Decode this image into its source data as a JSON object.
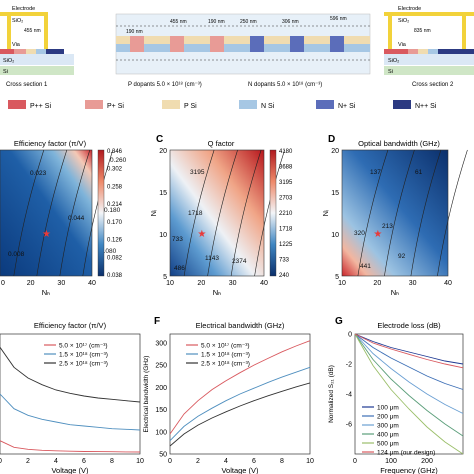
{
  "top": {
    "left_section": {
      "electrode": "Electrode",
      "sio2": "SiO₂",
      "dim": "455 nm",
      "via": "Via",
      "sio2_lower": "SiO₂",
      "si": "Si",
      "caption": "Cross section 1"
    },
    "center_section": {
      "dims": [
        "455 nm",
        "190 nm",
        "250 nm",
        "306 nm",
        "596 nm"
      ],
      "left_dim": "190 nm",
      "dopants_p": "P dopants  5.0 × 10¹⁸ (cm⁻³)",
      "dopants_n": "N dopants  5.0 × 10¹⁸ (cm⁻³)"
    },
    "right_section": {
      "electrode": "Electrode",
      "sio2": "SiO₂",
      "dim": "835 nm",
      "via": "Via",
      "sio2_lower": "SiO₂",
      "si": "Si",
      "caption": "Cross section 2"
    }
  },
  "legend": [
    {
      "label": "P++ Si",
      "color": "#d9595f"
    },
    {
      "label": "P+  Si",
      "color": "#e89b96"
    },
    {
      "label": "P   Si",
      "color": "#f0dcb0"
    },
    {
      "label": "N   Si",
      "color": "#a6c7e4"
    },
    {
      "label": "N+ Si",
      "color": "#5b6dba"
    },
    {
      "label": "N++ Si",
      "color": "#2c3a82"
    }
  ],
  "heatmaps": [
    {
      "panel": "",
      "title": "Efficiency factor (π/V)",
      "xlabel": "Nₕ",
      "ylabel": "",
      "x_ticks": [
        "20",
        "30",
        "40"
      ],
      "x_first_tick": "0",
      "y_ticks": [],
      "colorbar_ticks": [
        "0.346",
        "0.302",
        "0.258",
        "0.214",
        "0.170",
        "0.126",
        "0.082",
        "0.038"
      ],
      "contour_labels": [
        "0.023",
        "0.044",
        "0.080",
        "0.008",
        "0.180",
        "0.260"
      ],
      "star": {
        "x": 20,
        "y": 10
      }
    },
    {
      "panel": "C",
      "title": "Q factor",
      "xlabel": "Nₕ",
      "ylabel": "Nᵢ",
      "x_ticks": [
        "10",
        "20",
        "30",
        "40"
      ],
      "y_ticks": [
        "20",
        "15",
        "10",
        "5"
      ],
      "colorbar_ticks": [
        "4180",
        "3688",
        "3195",
        "2703",
        "2210",
        "1718",
        "1225",
        "733",
        "240"
      ],
      "contour_labels": [
        "3195",
        "1718",
        "733",
        "1143",
        "2374",
        "486"
      ],
      "star": {
        "x": 20,
        "y": 10
      }
    },
    {
      "panel": "D",
      "title": "Optical bandwidth (GHz)",
      "xlabel": "Nₕ",
      "ylabel": "Nᵢ",
      "x_ticks": [
        "10",
        "20",
        "30",
        "40"
      ],
      "y_ticks": [
        "20",
        "15",
        "10",
        "5"
      ],
      "colorbar_ticks": [],
      "contour_labels": [
        "137",
        "61",
        "320",
        "213",
        "92",
        "441"
      ],
      "star": {
        "x": 20,
        "y": 10
      }
    }
  ],
  "chart_data": [
    {
      "type": "line",
      "panel": "",
      "title": "Efficiency factor (π/V)",
      "xlabel": "Voltage (V)",
      "ylabel": "",
      "xlim": [
        0,
        10
      ],
      "x_ticks": [
        "0",
        "2",
        "4",
        "6",
        "8",
        "10"
      ],
      "x": [
        0,
        1,
        2,
        3,
        4,
        5,
        6,
        7,
        8,
        9,
        10
      ],
      "series": [
        {
          "name": "5.0 × 10¹⁷ (cm⁻³)",
          "color": "#d9595f",
          "values": [
            0.1,
            0.05,
            0.035,
            0.028,
            0.024,
            0.021,
            0.019,
            0.018,
            0.017,
            0.016,
            0.015
          ]
        },
        {
          "name": "1.5 × 10¹⁸ (cm⁻³)",
          "color": "#4f8fbf",
          "values": [
            0.45,
            0.34,
            0.29,
            0.26,
            0.24,
            0.22,
            0.21,
            0.2,
            0.19,
            0.185,
            0.18
          ]
        },
        {
          "name": "2.5 × 10¹⁸ (cm⁻³)",
          "color": "#333333",
          "values": [
            0.8,
            0.65,
            0.57,
            0.52,
            0.48,
            0.455,
            0.435,
            0.42,
            0.41,
            0.4,
            0.39
          ]
        }
      ],
      "ylim": [
        0,
        0.9
      ]
    },
    {
      "type": "line",
      "panel": "F",
      "title": "Electrical bandwidth (GHz)",
      "xlabel": "Voltage (V)",
      "ylabel": "Electrical bandwidth (GHz)",
      "xlim": [
        0,
        10
      ],
      "ylim": [
        50,
        320
      ],
      "x_ticks": [
        "0",
        "2",
        "4",
        "6",
        "8",
        "10"
      ],
      "y_ticks": [
        "300",
        "250",
        "200",
        "150",
        "100",
        "50"
      ],
      "x": [
        0,
        1,
        2,
        3,
        4,
        5,
        6,
        7,
        8,
        9,
        10
      ],
      "series": [
        {
          "name": "5.0 × 10¹⁷ (cm⁻³)",
          "color": "#d9595f",
          "values": [
            95,
            140,
            170,
            195,
            215,
            233,
            250,
            265,
            280,
            293,
            305
          ]
        },
        {
          "name": "1.5 × 10¹⁸ (cm⁻³)",
          "color": "#4f8fbf",
          "values": [
            80,
            112,
            135,
            153,
            170,
            185,
            198,
            211,
            223,
            234,
            245
          ]
        },
        {
          "name": "2.5 × 10¹⁸ (cm⁻³)",
          "color": "#333333",
          "values": [
            68,
            95,
            115,
            131,
            145,
            158,
            170,
            181,
            191,
            201,
            210
          ]
        }
      ]
    },
    {
      "type": "line",
      "panel": "G",
      "title": "Electrode loss (dB)",
      "xlabel": "Frequency (GHz)",
      "ylabel": "Normalized S₂₁ (dB)",
      "xlim": [
        0,
        300
      ],
      "ylim": [
        -8,
        0
      ],
      "x_ticks": [
        "0",
        "100",
        "200"
      ],
      "y_ticks": [
        "0",
        "-2",
        "-4",
        "-6"
      ],
      "x": [
        0,
        50,
        100,
        150,
        200,
        250,
        300
      ],
      "series": [
        {
          "name": "100 μm",
          "color": "#1f3a93",
          "values": [
            0,
            -0.5,
            -0.9,
            -1.2,
            -1.5,
            -1.8,
            -2.0
          ]
        },
        {
          "name": "200 μm",
          "color": "#3d6fb6",
          "values": [
            0,
            -0.9,
            -1.6,
            -2.2,
            -2.8,
            -3.3,
            -3.7
          ]
        },
        {
          "name": "300 μm",
          "color": "#6a9fd3",
          "values": [
            0,
            -1.3,
            -2.3,
            -3.2,
            -4.0,
            -4.7,
            -5.3
          ]
        },
        {
          "name": "400 μm",
          "color": "#5b9e7a",
          "values": [
            0,
            -1.7,
            -3.0,
            -4.1,
            -5.1,
            -6.0,
            -6.8
          ]
        },
        {
          "name": "500 μm",
          "color": "#9bbf6a",
          "values": [
            0,
            -2.1,
            -3.7,
            -5.0,
            -6.2,
            -7.2,
            -8.0
          ]
        },
        {
          "name": "124 μm (our design)",
          "color": "#d9595f",
          "values": [
            0,
            -0.6,
            -1.0,
            -1.35,
            -1.7,
            -2.0,
            -2.25
          ]
        }
      ]
    }
  ]
}
